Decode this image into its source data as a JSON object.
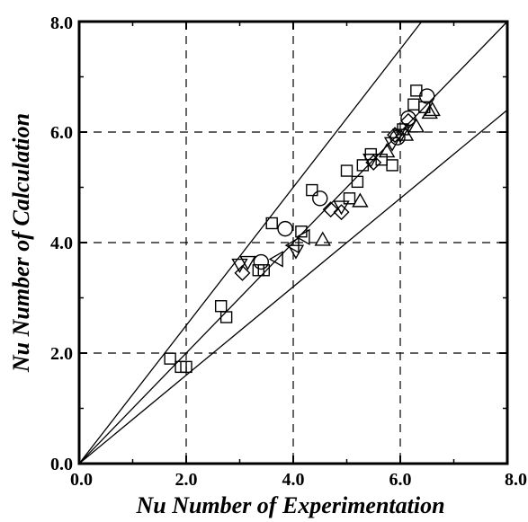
{
  "chart_data": {
    "type": "scatter",
    "title": "",
    "xlabel": "Nu Number of Experimentation",
    "ylabel": "Nu Number of Calculation",
    "xlim": [
      0,
      8
    ],
    "ylim": [
      0,
      8
    ],
    "x_ticks": [
      "0.0",
      "2.0",
      "4.0",
      "6.0",
      "8.0"
    ],
    "y_ticks": [
      "0.0",
      "2.0",
      "4.0",
      "6.0",
      "8.0"
    ],
    "grid": "dashed at major ticks",
    "reference_lines": [
      {
        "slope": 1.25,
        "label": ""
      },
      {
        "slope": 1.0,
        "label": ""
      },
      {
        "slope": 0.8,
        "label": ""
      }
    ],
    "series": [
      {
        "marker": "square",
        "points": [
          [
            1.7,
            1.9
          ],
          [
            1.9,
            1.75
          ],
          [
            2.0,
            1.75
          ],
          [
            2.65,
            2.85
          ],
          [
            2.75,
            2.65
          ],
          [
            3.35,
            3.5
          ],
          [
            3.45,
            3.5
          ],
          [
            3.6,
            4.35
          ],
          [
            4.15,
            4.2
          ],
          [
            4.35,
            4.95
          ],
          [
            5.0,
            5.3
          ],
          [
            5.05,
            4.8
          ],
          [
            5.2,
            5.1
          ],
          [
            5.45,
            5.6
          ],
          [
            5.65,
            5.5
          ],
          [
            5.85,
            5.4
          ],
          [
            6.05,
            6.05
          ],
          [
            6.25,
            6.5
          ],
          [
            6.3,
            6.75
          ],
          [
            6.45,
            6.45
          ],
          [
            5.3,
            5.4
          ]
        ]
      },
      {
        "marker": "circle",
        "points": [
          [
            3.4,
            3.65
          ],
          [
            3.85,
            4.25
          ],
          [
            4.5,
            4.8
          ],
          [
            5.95,
            5.9
          ],
          [
            6.15,
            6.25
          ],
          [
            6.5,
            6.65
          ]
        ]
      },
      {
        "marker": "triangle-up",
        "points": [
          [
            4.55,
            4.05
          ],
          [
            5.25,
            4.75
          ],
          [
            5.75,
            5.65
          ],
          [
            6.1,
            5.95
          ],
          [
            6.3,
            6.1
          ],
          [
            6.6,
            6.4
          ],
          [
            6.55,
            6.35
          ]
        ]
      },
      {
        "marker": "triangle-down",
        "points": [
          [
            3.0,
            3.6
          ],
          [
            3.15,
            3.65
          ],
          [
            4.05,
            3.85
          ],
          [
            4.9,
            4.65
          ],
          [
            5.45,
            5.5
          ],
          [
            5.85,
            5.8
          ],
          [
            6.0,
            5.95
          ]
        ]
      },
      {
        "marker": "triangle-left",
        "points": [
          [
            3.7,
            3.7
          ],
          [
            4.0,
            3.95
          ],
          [
            4.2,
            4.1
          ]
        ]
      },
      {
        "marker": "diamond",
        "points": [
          [
            3.05,
            3.45
          ],
          [
            4.7,
            4.6
          ],
          [
            4.9,
            4.55
          ],
          [
            5.5,
            5.45
          ],
          [
            5.9,
            5.95
          ],
          [
            6.15,
            6.2
          ]
        ]
      }
    ]
  }
}
